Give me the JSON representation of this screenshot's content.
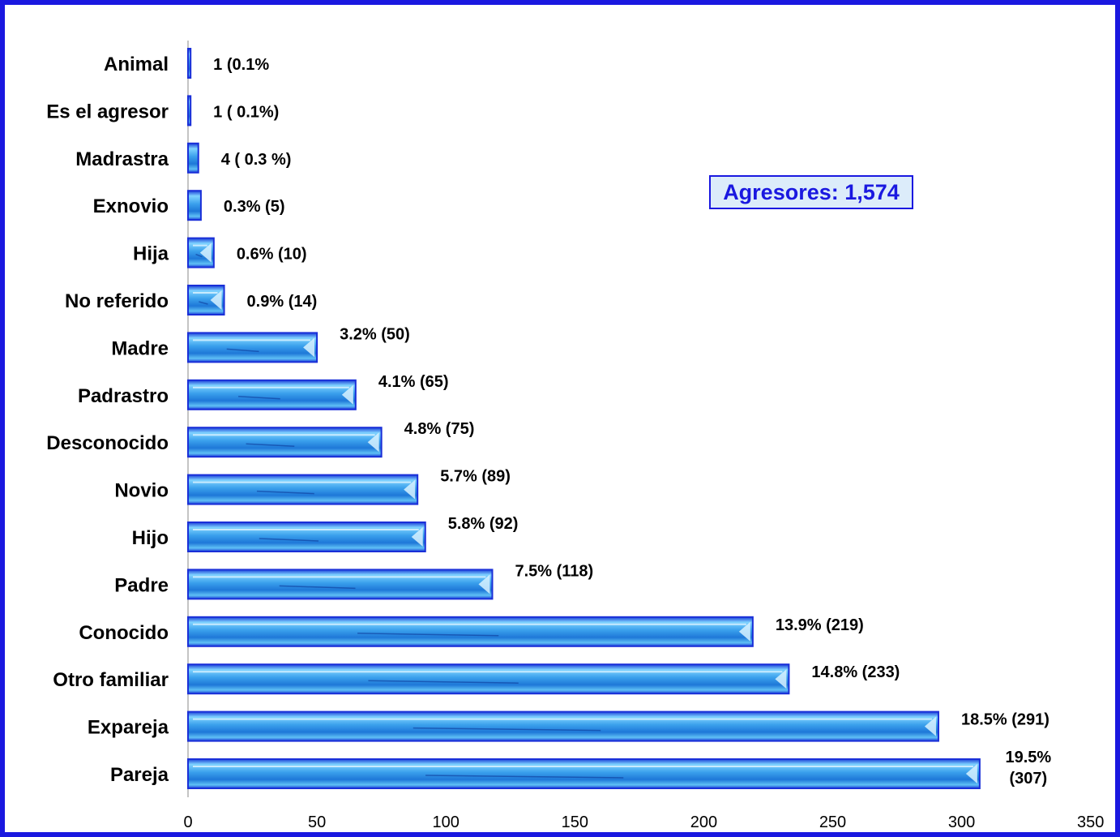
{
  "chart_data": {
    "type": "bar",
    "orientation": "horizontal",
    "categories": [
      "Animal",
      "Es el agresor",
      "Madrastra",
      "Exnovio",
      "Hija",
      "No referido",
      "Madre",
      "Padrastro",
      "Desconocido",
      "Novio",
      "Hijo",
      "Padre",
      "Conocido",
      "Otro familiar",
      "Expareja",
      "Pareja"
    ],
    "values": [
      1,
      1,
      4,
      5,
      10,
      14,
      50,
      65,
      75,
      89,
      92,
      118,
      219,
      233,
      291,
      307
    ],
    "data_labels": [
      "1 (0.1%",
      "1 ( 0.1%)",
      "4 ( 0.3 %)",
      "0.3% (5)",
      "0.6% (10)",
      "0.9% (14)",
      "3.2% (50)",
      "4.1% (65)",
      "4.8% (75)",
      "5.7% (89)",
      "5.8% (92)",
      "7.5% (118)",
      "13.9% (219)",
      "14.8% (233)",
      "18.5% (291)",
      "19.5% (307)"
    ],
    "xlim": [
      0,
      350
    ],
    "xticks": [
      0,
      50,
      100,
      150,
      200,
      250,
      300,
      350
    ],
    "grid": false,
    "title": "",
    "xlabel": "",
    "ylabel": "",
    "colors": {
      "bar": "#2f8fe0",
      "bar_light": "#bfe8ff",
      "bar_edge": "#1a2fd8",
      "frame": "#1a18e0"
    }
  },
  "annotation": {
    "text": "Agresores: 1,574",
    "color": "#1a18e0",
    "background": "#dcecfa"
  }
}
